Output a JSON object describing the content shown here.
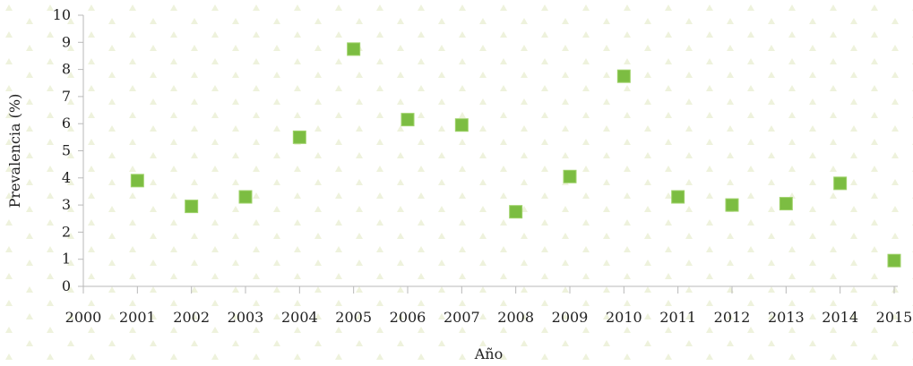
{
  "chart_data": {
    "type": "scatter",
    "title": "",
    "xlabel": "Año",
    "ylabel": "Prevalencia (%)",
    "xlim": [
      2000,
      2015
    ],
    "ylim": [
      0,
      10
    ],
    "x_ticks": [
      "2000",
      "2001",
      "2002",
      "2003",
      "2004",
      "2005",
      "2006",
      "2007",
      "2008",
      "2009",
      "2010",
      "2011",
      "2012",
      "2013",
      "2014",
      "2015"
    ],
    "y_ticks": [
      "0",
      "1",
      "2",
      "3",
      "4",
      "5",
      "6",
      "7",
      "8",
      "9",
      "10"
    ],
    "grid": false,
    "legend": "none",
    "marker": "square",
    "series": [
      {
        "color": "#7cbd42",
        "points": [
          {
            "x": 2001,
            "y": 3.9
          },
          {
            "x": 2002,
            "y": 2.95
          },
          {
            "x": 2003,
            "y": 3.3
          },
          {
            "x": 2004,
            "y": 5.5
          },
          {
            "x": 2005,
            "y": 8.75
          },
          {
            "x": 2006,
            "y": 6.15
          },
          {
            "x": 2007,
            "y": 5.95
          },
          {
            "x": 2008,
            "y": 2.75
          },
          {
            "x": 2009,
            "y": 4.05
          },
          {
            "x": 2010,
            "y": 7.75
          },
          {
            "x": 2011,
            "y": 3.3
          },
          {
            "x": 2012,
            "y": 3.0
          },
          {
            "x": 2013,
            "y": 3.05
          },
          {
            "x": 2014,
            "y": 3.8
          },
          {
            "x": 2015,
            "y": 0.95
          }
        ]
      }
    ]
  }
}
